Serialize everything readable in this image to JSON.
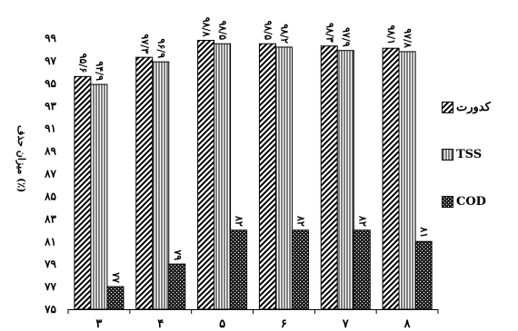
{
  "chart_data": {
    "type": "bar",
    "categories": [
      "۳",
      "۴",
      "۵",
      "۶",
      "۷",
      "۸"
    ],
    "series": [
      {
        "name": "کدورت",
        "pattern": "diagonal",
        "values": [
          95.6,
          97.3,
          98.8,
          98.5,
          98.3,
          98.1
        ],
        "labels": [
          "۹۵/۶",
          "۹۷/۳",
          "۹۸/۸",
          "۹۸/۵",
          "۹۸/۳",
          "۹۸/۱"
        ]
      },
      {
        "name": "TSS",
        "pattern": "vertical",
        "values": [
          94.9,
          96.9,
          98.5,
          98.2,
          97.9,
          97.8
        ],
        "labels": [
          "۹۴/۹",
          "۹۶/۹",
          "۹۸/۵",
          "۹۸/۲",
          "۹۷/۹",
          "۹۷/۸"
        ]
      },
      {
        "name": "COD",
        "pattern": "dots",
        "values": [
          77,
          79,
          82,
          82,
          82,
          81
        ],
        "labels": [
          "۷۷",
          "۷۹",
          "۸۲",
          "۸۲",
          "۸۲",
          "۸۱"
        ]
      }
    ],
    "yticks": [
      75,
      77,
      79,
      81,
      83,
      85,
      87,
      89,
      91,
      93,
      95,
      97,
      99
    ],
    "ytick_labels": [
      "۷۵",
      "۷۷",
      "۷۹",
      "۸۱",
      "۸۳",
      "۸۵",
      "۸۷",
      "۸۹",
      "۹۱",
      "۹۳",
      "۹۵",
      "۹۷",
      "۹۹"
    ],
    "ylim": [
      75,
      99
    ],
    "ylabel": "میزان حذف (٪)",
    "xlabel": "",
    "title": "",
    "legend_position": "right",
    "grid": false
  }
}
